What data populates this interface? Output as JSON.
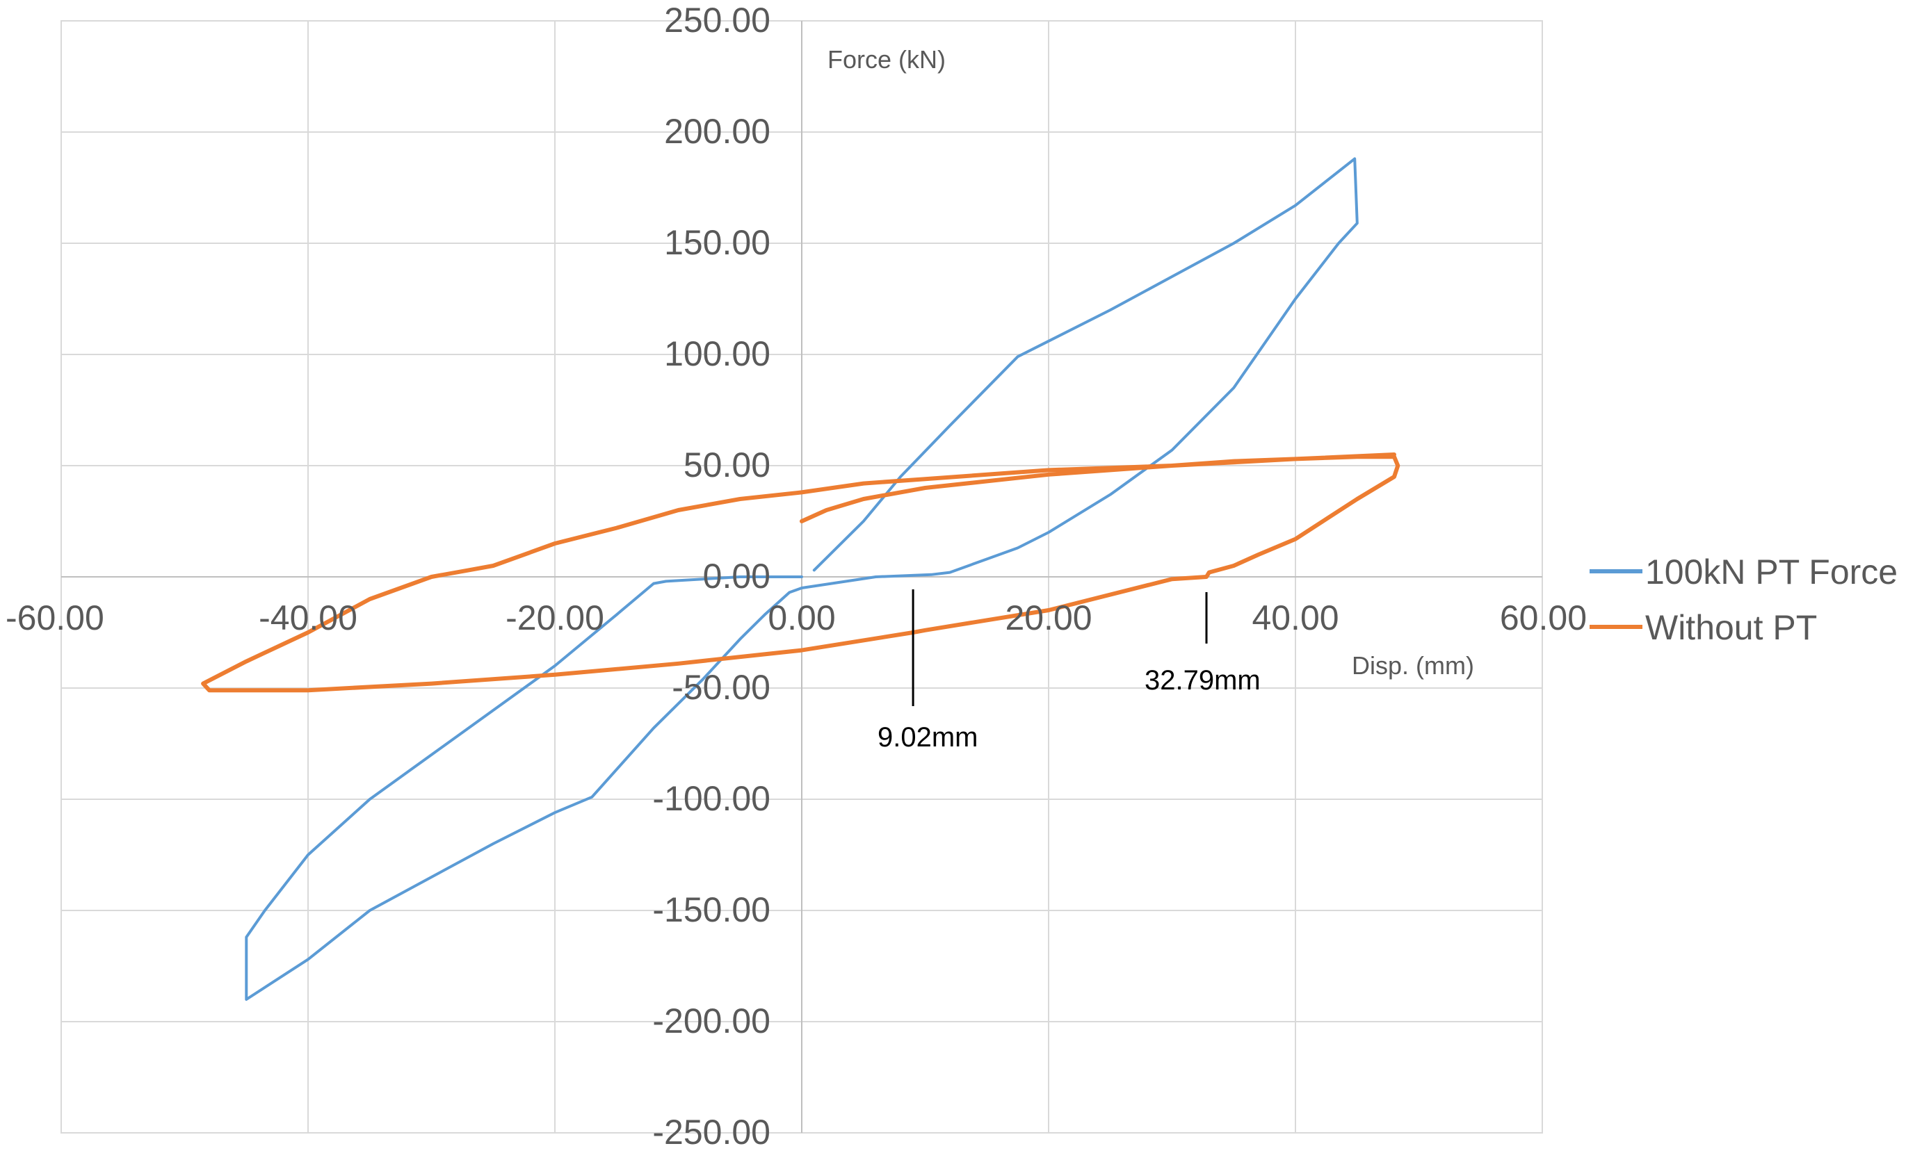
{
  "chart_data": {
    "type": "line",
    "title": "",
    "xlabel": "Disp. (mm)",
    "ylabel": "Force (kN)",
    "xlim": [
      -60,
      60
    ],
    "ylim": [
      -250,
      250
    ],
    "x_ticks": [
      "-60.00",
      "-40.00",
      "-20.00",
      "0.00",
      "20.00",
      "40.00",
      "60.00"
    ],
    "y_ticks": [
      "250.00",
      "200.00",
      "150.00",
      "100.00",
      "50.00",
      "0.00",
      "-50.00",
      "-100.00",
      "-150.00",
      "-200.00",
      "-250.00"
    ],
    "grid": true,
    "legend": "right",
    "series": [
      {
        "name": "100kN PT Force",
        "color": "#5b9bd5",
        "points": [
          [
            1,
            3
          ],
          [
            5,
            25
          ],
          [
            8,
            45
          ],
          [
            12,
            68
          ],
          [
            17.5,
            99
          ],
          [
            20,
            106
          ],
          [
            25,
            120
          ],
          [
            30,
            135
          ],
          [
            35,
            150
          ],
          [
            40,
            167
          ],
          [
            44.8,
            188
          ],
          [
            45,
            159
          ],
          [
            43.5,
            150
          ],
          [
            40,
            125
          ],
          [
            35,
            85
          ],
          [
            30,
            57
          ],
          [
            25,
            37
          ],
          [
            20,
            20
          ],
          [
            17.5,
            13
          ],
          [
            15,
            8
          ],
          [
            12,
            2
          ],
          [
            10.5,
            1
          ],
          [
            6,
            0
          ],
          [
            0,
            -5
          ],
          [
            -1,
            -7
          ],
          [
            -3,
            -17
          ],
          [
            -5,
            -28
          ],
          [
            -8,
            -46
          ],
          [
            -12,
            -68
          ],
          [
            -17,
            -99
          ],
          [
            -20,
            -106
          ],
          [
            -25,
            -120
          ],
          [
            -30,
            -135
          ],
          [
            -35,
            -150
          ],
          [
            -40,
            -172
          ],
          [
            -45,
            -190
          ],
          [
            -45,
            -162
          ],
          [
            -43.5,
            -150
          ],
          [
            -40,
            -125
          ],
          [
            -35,
            -100
          ],
          [
            -30,
            -80
          ],
          [
            -25,
            -60
          ],
          [
            -20,
            -40
          ],
          [
            -15,
            -17
          ],
          [
            -12,
            -3
          ],
          [
            -11,
            -2
          ],
          [
            -5,
            0
          ],
          [
            0,
            0
          ]
        ]
      },
      {
        "name": "Without PT",
        "color": "#ed7d31",
        "points": [
          [
            0,
            25
          ],
          [
            2,
            30
          ],
          [
            5,
            35
          ],
          [
            10,
            40
          ],
          [
            15,
            43
          ],
          [
            20,
            46
          ],
          [
            25,
            48
          ],
          [
            30,
            50
          ],
          [
            35,
            52
          ],
          [
            40,
            53
          ],
          [
            45,
            54
          ],
          [
            48,
            54
          ],
          [
            48.3,
            50
          ],
          [
            48,
            45
          ],
          [
            45,
            35
          ],
          [
            40,
            17
          ],
          [
            37,
            10
          ],
          [
            35,
            5
          ],
          [
            33,
            2
          ],
          [
            32.79,
            0
          ],
          [
            30,
            -1
          ],
          [
            20,
            -15
          ],
          [
            10,
            -24
          ],
          [
            9.02,
            -25
          ],
          [
            0,
            -33
          ],
          [
            -10,
            -39
          ],
          [
            -20,
            -44
          ],
          [
            -30,
            -48
          ],
          [
            -40,
            -51
          ],
          [
            -48,
            -51
          ],
          [
            -48.5,
            -48
          ],
          [
            -45,
            -38
          ],
          [
            -40,
            -25
          ],
          [
            -35,
            -10
          ],
          [
            -30,
            0
          ],
          [
            -27,
            3
          ],
          [
            -25,
            5
          ],
          [
            -20,
            15
          ],
          [
            -15,
            22
          ],
          [
            -10,
            30
          ],
          [
            -5,
            35
          ],
          [
            0,
            38
          ],
          [
            5,
            42
          ],
          [
            10,
            44
          ],
          [
            20,
            48
          ],
          [
            30,
            50
          ],
          [
            40,
            53
          ],
          [
            48,
            55
          ]
        ]
      }
    ],
    "annotations": [
      {
        "text": "9.02mm",
        "x": 9.02
      },
      {
        "text": "32.79mm",
        "x": 32.79
      }
    ]
  }
}
